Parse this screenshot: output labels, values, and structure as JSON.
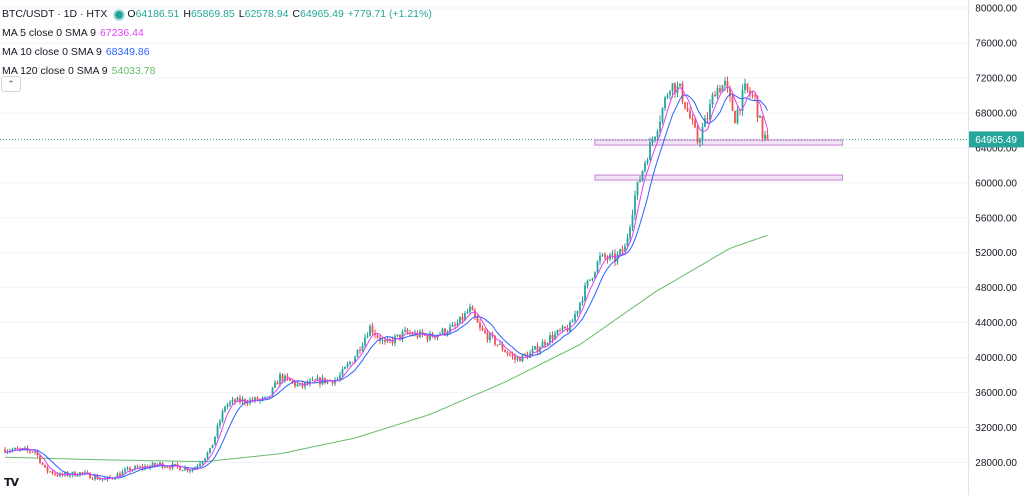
{
  "legend": {
    "symbol": "BTC/USDT · 1D · HTX",
    "ohlc": {
      "o_label": "O",
      "o": "64186.51",
      "h_label": "H",
      "h": "65869.85",
      "l_label": "L",
      "l": "62578.94",
      "c_label": "C",
      "c": "64965.49",
      "change": "+779.71 (+1.21%)"
    },
    "indicators": [
      {
        "label": "MA 5 close 0 SMA 9",
        "value": "67236.44",
        "color": "#e040fb"
      },
      {
        "label": "MA 10 close 0 SMA 9",
        "value": "68349.86",
        "color": "#2962ff"
      },
      {
        "label": "MA 120 close 0 SMA 9",
        "value": "54033.78",
        "color": "#66bb6a"
      }
    ],
    "collapse_icon": "chevron-up-icon"
  },
  "logo_text": "TV",
  "colors": {
    "up": "#26a69a",
    "down": "#ef5350",
    "ma5": "#e040fb",
    "ma10": "#2962ff",
    "ma120": "#66bb6a",
    "zone": "#ce93d8",
    "price_line": "#26a69a"
  },
  "chart_data": {
    "type": "candlestick",
    "title": "BTC/USDT · 1D · HTX",
    "ylim": [
      26000,
      82000
    ],
    "y_ticks": [
      "80000.00",
      "76000.00",
      "72000.00",
      "68000.00",
      "64000.00",
      "60000.00",
      "56000.00",
      "52000.00",
      "48000.00",
      "44000.00",
      "40000.00",
      "36000.00",
      "32000.00",
      "28000.00"
    ],
    "last_price": "64965.49",
    "horizontal_zones": [
      {
        "name": "upper-zone",
        "value": 64600
      },
      {
        "name": "lower-zone",
        "value": 60600
      }
    ],
    "price_anchors": [
      [
        0,
        29500
      ],
      [
        12,
        29300
      ],
      [
        16,
        27200
      ],
      [
        22,
        26500
      ],
      [
        30,
        26800
      ],
      [
        40,
        26000
      ],
      [
        50,
        27200
      ],
      [
        62,
        27800
      ],
      [
        75,
        27200
      ],
      [
        82,
        29300
      ],
      [
        88,
        34500
      ],
      [
        92,
        35000
      ],
      [
        105,
        35200
      ],
      [
        110,
        37800
      ],
      [
        118,
        36700
      ],
      [
        125,
        37300
      ],
      [
        133,
        37500
      ],
      [
        140,
        40200
      ],
      [
        146,
        43500
      ],
      [
        152,
        41500
      ],
      [
        160,
        42800
      ],
      [
        170,
        42400
      ],
      [
        180,
        43500
      ],
      [
        186,
        45500
      ],
      [
        190,
        43200
      ],
      [
        196,
        41800
      ],
      [
        204,
        39800
      ],
      [
        210,
        40400
      ],
      [
        218,
        42300
      ],
      [
        226,
        43500
      ],
      [
        232,
        47800
      ],
      [
        238,
        51400
      ],
      [
        244,
        51300
      ],
      [
        248,
        52500
      ],
      [
        252,
        58500
      ],
      [
        256,
        62500
      ],
      [
        262,
        67500
      ],
      [
        266,
        71300
      ],
      [
        270,
        70600
      ],
      [
        273,
        68200
      ],
      [
        277,
        64800
      ],
      [
        281,
        67500
      ],
      [
        284,
        70700
      ],
      [
        288,
        71200
      ],
      [
        292,
        67500
      ],
      [
        296,
        70600
      ],
      [
        300,
        69600
      ],
      [
        303,
        65500
      ],
      [
        305,
        64965
      ]
    ],
    "ma120_anchors": [
      [
        0,
        28600
      ],
      [
        40,
        28300
      ],
      [
        80,
        28100
      ],
      [
        110,
        29000
      ],
      [
        140,
        30800
      ],
      [
        170,
        33500
      ],
      [
        200,
        37200
      ],
      [
        230,
        41500
      ],
      [
        260,
        47500
      ],
      [
        290,
        52500
      ],
      [
        305,
        54000
      ]
    ]
  }
}
